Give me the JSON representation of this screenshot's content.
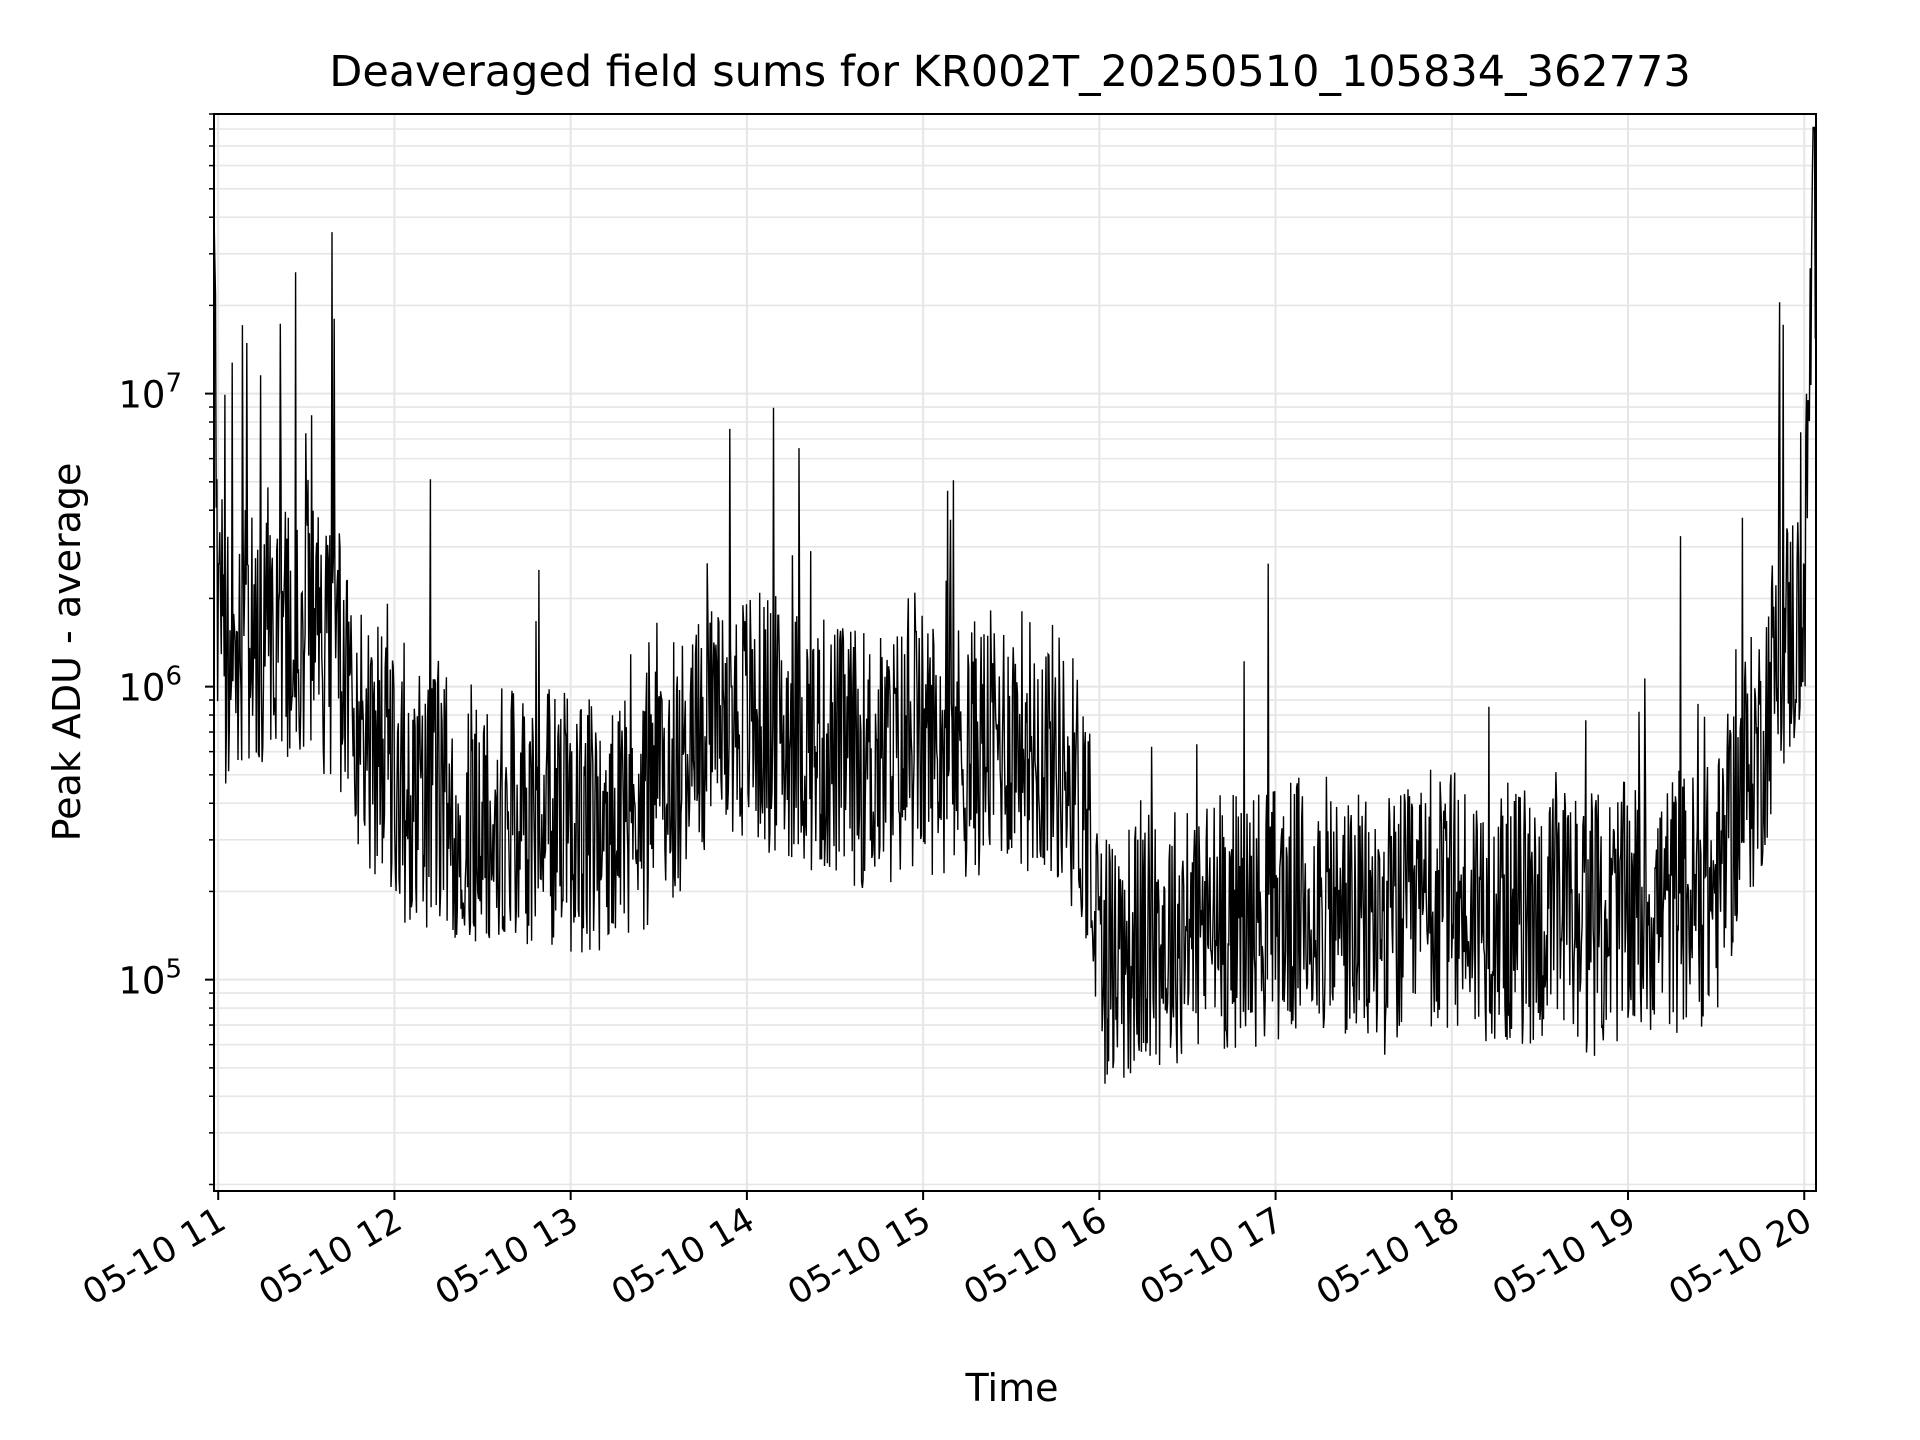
{
  "chart_data": {
    "type": "line",
    "title": "Deaveraged field sums for KR002T_20250510_105834_362773",
    "xlabel": "Time",
    "ylabel": "Peak ADU - average",
    "y_scale": "log",
    "ylim": [
      19000,
      90000000
    ],
    "xlim": [
      "2025-05-10T10:58:34",
      "2025-05-10T20:04:00"
    ],
    "x_ticks": [
      {
        "value": "2025-05-10T11:00",
        "label": "05-10 11"
      },
      {
        "value": "2025-05-10T12:00",
        "label": "05-10 12"
      },
      {
        "value": "2025-05-10T13:00",
        "label": "05-10 13"
      },
      {
        "value": "2025-05-10T14:00",
        "label": "05-10 14"
      },
      {
        "value": "2025-05-10T15:00",
        "label": "05-10 15"
      },
      {
        "value": "2025-05-10T16:00",
        "label": "05-10 16"
      },
      {
        "value": "2025-05-10T17:00",
        "label": "05-10 17"
      },
      {
        "value": "2025-05-10T18:00",
        "label": "05-10 18"
      },
      {
        "value": "2025-05-10T19:00",
        "label": "05-10 19"
      },
      {
        "value": "2025-05-10T20:00",
        "label": "05-10 20"
      }
    ],
    "y_ticks": [
      {
        "value": 100000,
        "base": "10",
        "exp": "5"
      },
      {
        "value": 1000000,
        "base": "10",
        "exp": "6"
      },
      {
        "value": 10000000,
        "base": "10",
        "exp": "7"
      }
    ],
    "grid": true,
    "grid_minor": true,
    "line_color": "#000000",
    "grid_color": "#e6e6e6",
    "series": [
      {
        "x": [
          "2025-05-10T10:58:34",
          "2025-05-10T11:00",
          "2025-05-10T11:05",
          "2025-05-10T11:10",
          "2025-05-10T11:20",
          "2025-05-10T11:30",
          "2025-05-10T11:40",
          "2025-05-10T11:50",
          "2025-05-10T12:00",
          "2025-05-10T12:15",
          "2025-05-10T12:30",
          "2025-05-10T12:45",
          "2025-05-10T13:00",
          "2025-05-10T13:15",
          "2025-05-10T13:30",
          "2025-05-10T13:45",
          "2025-05-10T14:00",
          "2025-05-10T14:15",
          "2025-05-10T14:30",
          "2025-05-10T14:45",
          "2025-05-10T15:00",
          "2025-05-10T15:15",
          "2025-05-10T15:30",
          "2025-05-10T15:45",
          "2025-05-10T15:55",
          "2025-05-10T16:00",
          "2025-05-10T16:15",
          "2025-05-10T16:30",
          "2025-05-10T16:45",
          "2025-05-10T17:00",
          "2025-05-10T17:15",
          "2025-05-10T17:30",
          "2025-05-10T17:45",
          "2025-05-10T18:00",
          "2025-05-10T18:15",
          "2025-05-10T18:30",
          "2025-05-10T18:45",
          "2025-05-10T19:00",
          "2025-05-10T19:15",
          "2025-05-10T19:30",
          "2025-05-10T19:40",
          "2025-05-10T19:45",
          "2025-05-10T19:50",
          "2025-05-10T19:55",
          "2025-05-10T20:00",
          "2025-05-10T20:03"
        ],
        "y": [
          35000000,
          1300000,
          1200000,
          1500000,
          1500000,
          1600000,
          1300000,
          700000,
          450000,
          400000,
          350000,
          350000,
          350000,
          300000,
          450000,
          700000,
          800000,
          700000,
          600000,
          550000,
          650000,
          600000,
          700000,
          600000,
          400000,
          120000,
          130000,
          150000,
          160000,
          170000,
          180000,
          150000,
          160000,
          180000,
          170000,
          160000,
          150000,
          170000,
          180000,
          200000,
          500000,
          600000,
          1200000,
          1500000,
          1800000,
          40000000
        ],
        "noise_range": [
          0.1,
          20
        ]
      }
    ]
  }
}
